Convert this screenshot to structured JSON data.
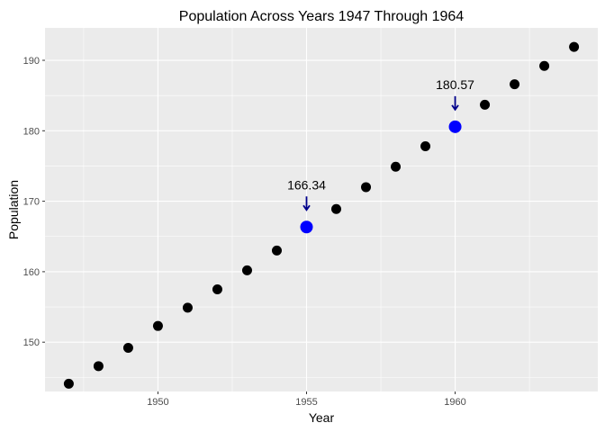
{
  "chart_data": {
    "type": "scatter",
    "title": "Population Across Years 1947 Through 1964",
    "xlabel": "Year",
    "ylabel": "Population",
    "xlim": [
      1946.2,
      1964.8
    ],
    "ylim": [
      143.0,
      194.6
    ],
    "xticks": [
      1950,
      1955,
      1960
    ],
    "yticks": [
      150,
      160,
      170,
      180,
      190
    ],
    "grid": true,
    "legend": "none",
    "colors": {
      "panel": "#EBEBEB",
      "grid": "#FFFFFF",
      "point": "#000000",
      "highlight": "#0000FF",
      "arrow": "#00008B"
    },
    "points": [
      {
        "x": 1947,
        "y": 144.1
      },
      {
        "x": 1948,
        "y": 146.6
      },
      {
        "x": 1949,
        "y": 149.2
      },
      {
        "x": 1950,
        "y": 152.3
      },
      {
        "x": 1951,
        "y": 154.9
      },
      {
        "x": 1952,
        "y": 157.5
      },
      {
        "x": 1953,
        "y": 160.2
      },
      {
        "x": 1954,
        "y": 163.0
      },
      {
        "x": 1955,
        "y": 166.34,
        "highlight": true
      },
      {
        "x": 1956,
        "y": 168.9
      },
      {
        "x": 1957,
        "y": 172.0
      },
      {
        "x": 1958,
        "y": 174.9
      },
      {
        "x": 1959,
        "y": 177.8
      },
      {
        "x": 1960,
        "y": 180.57,
        "highlight": true
      },
      {
        "x": 1961,
        "y": 183.7
      },
      {
        "x": 1962,
        "y": 186.6
      },
      {
        "x": 1963,
        "y": 189.2
      },
      {
        "x": 1964,
        "y": 191.9
      }
    ],
    "annotations": [
      {
        "x": 1955,
        "y": 166.34,
        "label": "166.34"
      },
      {
        "x": 1960,
        "y": 180.57,
        "label": "180.57"
      }
    ]
  }
}
